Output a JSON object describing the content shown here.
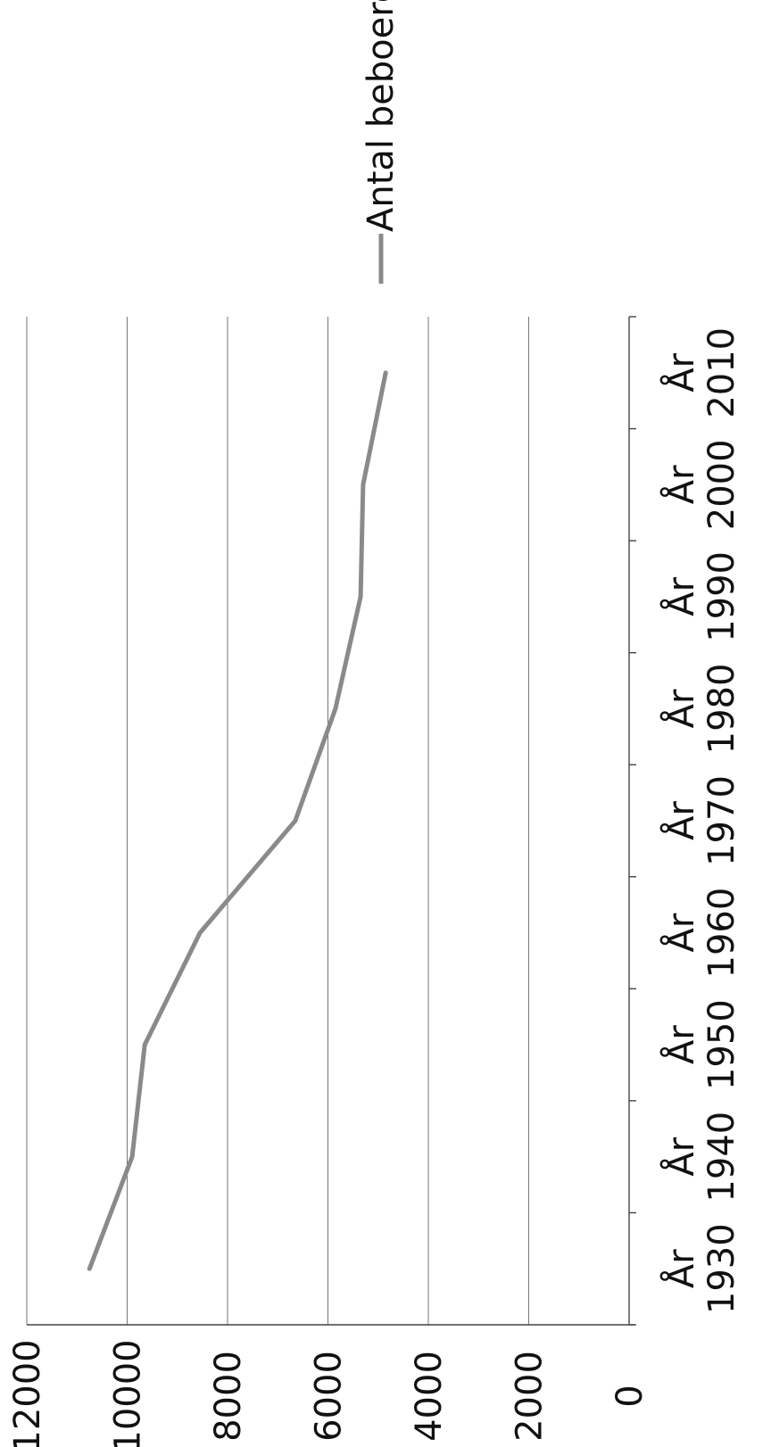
{
  "chart_data": {
    "type": "line",
    "orientation": "rotated-90-ccw",
    "categories": [
      "År 1930",
      "År 1940",
      "År 1950",
      "År 1960",
      "År 1970",
      "År 1980",
      "År 1990",
      "År 2000",
      "År 2010"
    ],
    "category_lines": [
      [
        "År",
        "1930"
      ],
      [
        "År",
        "1940"
      ],
      [
        "År",
        "1950"
      ],
      [
        "År",
        "1960"
      ],
      [
        "År",
        "1970"
      ],
      [
        "År",
        "1980"
      ],
      [
        "År",
        "1990"
      ],
      [
        "År",
        "2000"
      ],
      [
        "År",
        "2010"
      ]
    ],
    "series": [
      {
        "name": "Antal beboere",
        "color": "#8a8a8a",
        "values": [
          10750,
          9900,
          9650,
          8550,
          6650,
          5850,
          5350,
          5300,
          4850
        ]
      }
    ],
    "ylim": [
      0,
      12000
    ],
    "yticks": [
      0,
      2000,
      4000,
      6000,
      8000,
      10000,
      12000
    ],
    "ytick_labels": [
      "0",
      "2000",
      "4000",
      "6000",
      "8000",
      "10000",
      "12000"
    ],
    "grid": true,
    "legend": "right"
  }
}
